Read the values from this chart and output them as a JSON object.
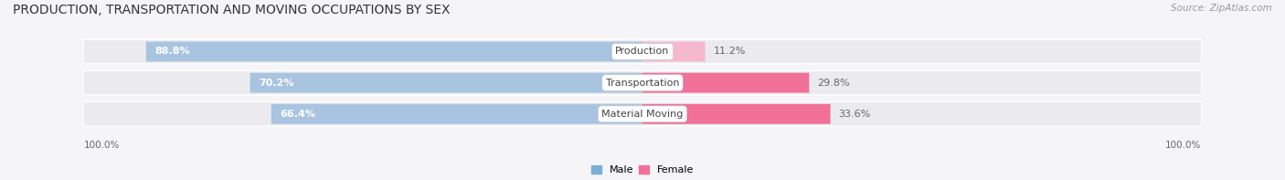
{
  "title": "PRODUCTION, TRANSPORTATION AND MOVING OCCUPATIONS BY SEX",
  "source": "Source: ZipAtlas.com",
  "categories": [
    "Production",
    "Transportation",
    "Material Moving"
  ],
  "male_pct": [
    88.8,
    70.2,
    66.4
  ],
  "female_pct": [
    11.2,
    29.8,
    33.6
  ],
  "male_color": "#a8c4e0",
  "female_color_production": "#f5b8cc",
  "female_color_other": "#f07098",
  "female_colors": [
    "#f5b8cc",
    "#f07098",
    "#f07098"
  ],
  "male_label": "Male",
  "female_label": "Female",
  "legend_male_color": "#7aaed4",
  "legend_female_color": "#f07098",
  "bg_color": "#f5f5f8",
  "row_bg_color": "#ebebef",
  "title_fontsize": 10,
  "bar_label_fontsize": 8,
  "category_fontsize": 8,
  "tick_fontsize": 7.5,
  "source_fontsize": 7.5,
  "axis_label_left": "100.0%",
  "axis_label_right": "100.0%"
}
